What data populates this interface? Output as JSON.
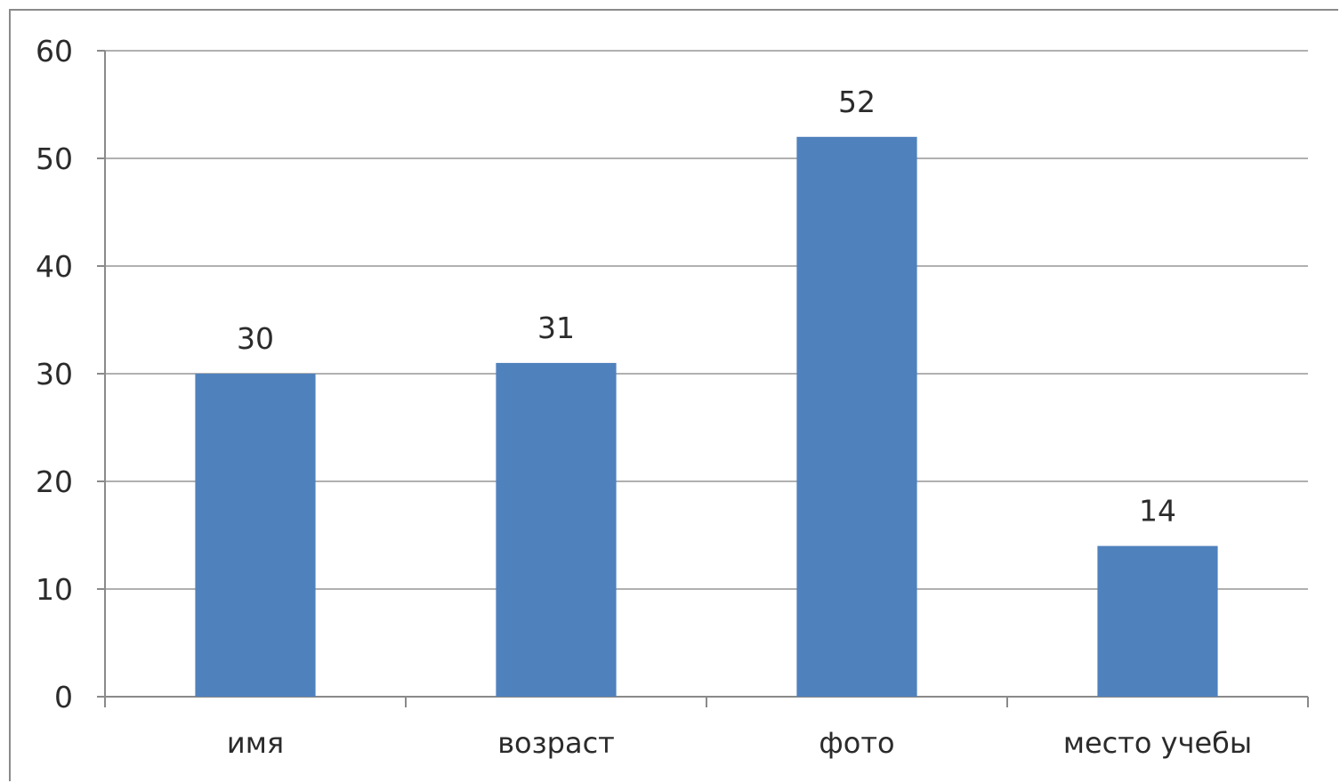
{
  "chart_data": {
    "type": "bar",
    "categories": [
      "имя",
      "возраст",
      "фото",
      "место учебы"
    ],
    "values": [
      30,
      31,
      52,
      14
    ],
    "data_labels": [
      "30",
      "31",
      "52",
      "14"
    ],
    "title": "",
    "xlabel": "",
    "ylabel": "",
    "ylim": [
      0,
      60
    ],
    "yticks": [
      0,
      10,
      20,
      30,
      40,
      50,
      60
    ],
    "ytick_labels": [
      "0",
      "10",
      "20",
      "30",
      "40",
      "50",
      "60"
    ],
    "grid": true,
    "legend": "none",
    "bar_color": "#4f81bd",
    "grid_color": "#b0b0b0"
  }
}
